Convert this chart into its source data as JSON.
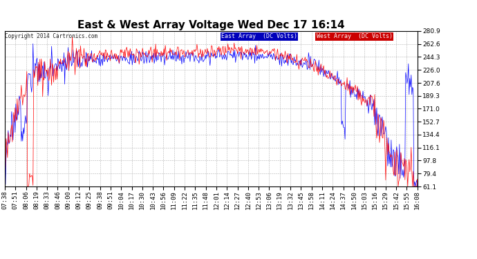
{
  "title": "East & West Array Voltage Wed Dec 17 16:14",
  "copyright": "Copyright 2014 Cartronics.com",
  "legend_east": "East Array  (DC Volts)",
  "legend_west": "West Array  (DC Volts)",
  "east_color": "#0000ff",
  "west_color": "#ff0000",
  "legend_east_bg": "#0000bb",
  "legend_west_bg": "#cc0000",
  "ymin": 61.1,
  "ymax": 280.9,
  "yticks": [
    61.1,
    79.4,
    97.8,
    116.1,
    134.4,
    152.7,
    171.0,
    189.3,
    207.6,
    226.0,
    244.3,
    262.6,
    280.9
  ],
  "bg_color": "#ffffff",
  "grid_color": "#aaaaaa",
  "title_fontsize": 11,
  "tick_fontsize": 6.5,
  "n_points": 600,
  "seed": 17
}
